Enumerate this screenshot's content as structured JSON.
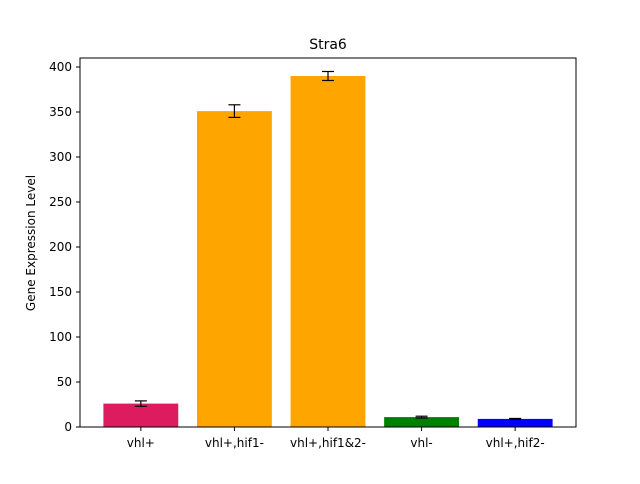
{
  "chart_data": {
    "type": "bar",
    "title": "Stra6",
    "xlabel": "",
    "ylabel": "Gene Expression Level",
    "categories": [
      "vhl+",
      "vhl+,hif1-",
      "vhl+,hif1&2-",
      "vhl-",
      "vhl+,hif2-"
    ],
    "values": [
      26,
      351,
      390,
      11,
      9
    ],
    "errors": [
      3,
      7,
      5,
      1,
      0.5
    ],
    "colors": [
      "#dc1c5e",
      "#ffa500",
      "#ffa500",
      "#008000",
      "#0000ff"
    ],
    "ylim": [
      0,
      410
    ],
    "yticks": [
      0,
      50,
      100,
      150,
      200,
      250,
      300,
      350,
      400
    ],
    "grid": false,
    "legend": "none"
  }
}
